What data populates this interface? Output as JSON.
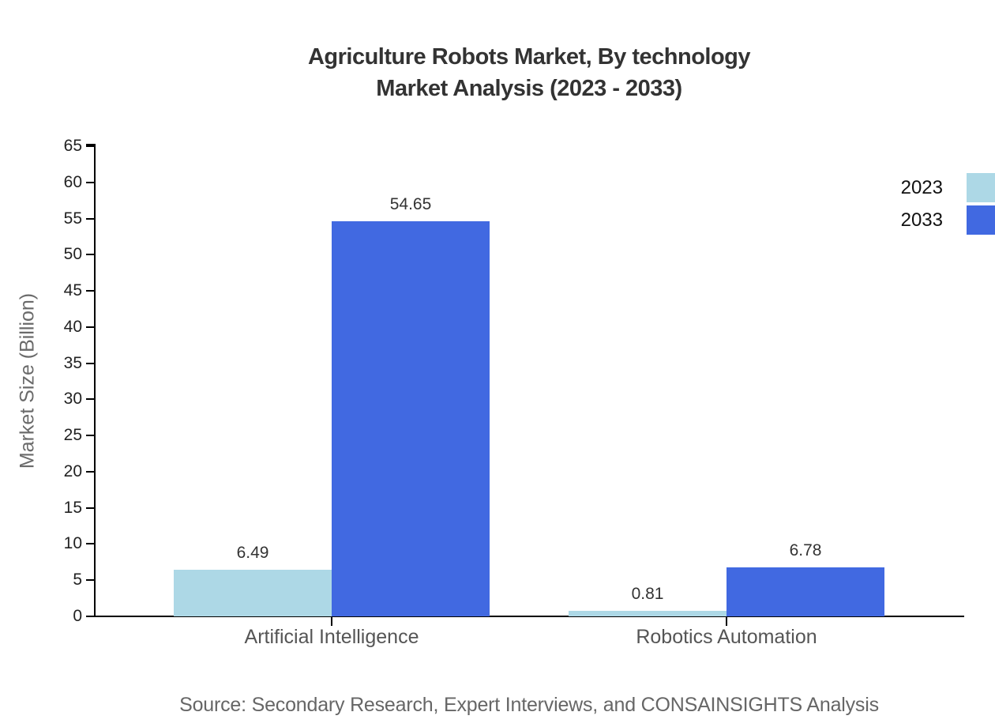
{
  "chart_data": {
    "type": "bar",
    "title": "Agriculture Robots Market, By technology",
    "subtitle": "Market Analysis (2023 - 2033)",
    "ylabel": "Market Size (Billion)",
    "xlabel": "",
    "categories": [
      "Artificial Intelligence",
      "Robotics Automation"
    ],
    "series": [
      {
        "name": "2023",
        "color": "#ADD8E6",
        "values": [
          6.49,
          0.81
        ]
      },
      {
        "name": "2033",
        "color": "#4169E1",
        "values": [
          54.65,
          6.78
        ]
      }
    ],
    "value_label_format": "2dp",
    "ylim": [
      0,
      65
    ],
    "yticks": [
      0,
      5,
      10,
      15,
      20,
      25,
      30,
      35,
      40,
      45,
      50,
      55,
      60,
      65
    ],
    "grid": false,
    "legend_position": "top-right"
  },
  "source": "Source: Secondary Research, Expert Interviews, and CONSAINSIGHTS Analysis"
}
